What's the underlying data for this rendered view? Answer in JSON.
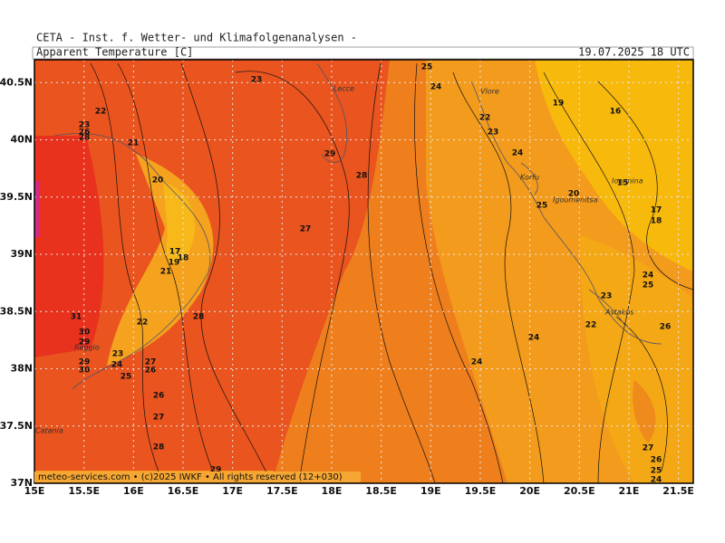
{
  "header": {
    "institute": "CETA - Inst. f. Wetter- und Klimafolgenanalysen -",
    "title": "Apparent Temperature [C]",
    "valid": "19.07.2025 18 UTC",
    "footer": "meteo-services.com • (c)2025 IWKF • All rights reserved (12+030)"
  },
  "map": {
    "xlim": [
      15,
      21.65
    ],
    "ylim": [
      37,
      40.7
    ],
    "xticks": [
      {
        "value": 15,
        "label": "15E"
      },
      {
        "value": 15.5,
        "label": "15.5E"
      },
      {
        "value": 16,
        "label": "16E"
      },
      {
        "value": 16.5,
        "label": "16.5E"
      },
      {
        "value": 17,
        "label": "17E"
      },
      {
        "value": 17.5,
        "label": "17.5E"
      },
      {
        "value": 18,
        "label": "18E"
      },
      {
        "value": 18.5,
        "label": "18.5E"
      },
      {
        "value": 19,
        "label": "19E"
      },
      {
        "value": 19.5,
        "label": "19.5E"
      },
      {
        "value": 20,
        "label": "20E"
      },
      {
        "value": 20.5,
        "label": "20.5E"
      },
      {
        "value": 21,
        "label": "21E"
      },
      {
        "value": 21.5,
        "label": "21.5E"
      }
    ],
    "yticks": [
      {
        "value": 37,
        "label": "37N"
      },
      {
        "value": 37.5,
        "label": "37.5N"
      },
      {
        "value": 38,
        "label": "38N"
      },
      {
        "value": 38.5,
        "label": "38.5N"
      },
      {
        "value": 39,
        "label": "39N"
      },
      {
        "value": 39.5,
        "label": "39.5N"
      },
      {
        "value": 40,
        "label": "40N"
      },
      {
        "value": 40.5,
        "label": "40.5N"
      }
    ],
    "contour_labels": [
      23,
      25,
      24,
      22,
      23,
      26,
      28,
      21,
      19,
      16,
      22,
      23,
      29,
      24,
      28,
      20,
      20,
      15,
      25,
      17,
      18,
      27,
      17,
      18,
      19,
      21,
      24,
      25,
      23,
      28,
      31,
      22,
      22,
      26,
      30,
      29,
      23,
      24,
      29,
      30,
      27,
      26,
      25,
      24,
      24,
      26,
      27,
      28,
      27,
      26,
      25,
      24,
      29
    ],
    "places": [
      "Vlore",
      "Lecce",
      "Korfu",
      "Igoumenitsa",
      "Ioannina",
      "Astakos",
      "Catania",
      "Reggio"
    ]
  }
}
